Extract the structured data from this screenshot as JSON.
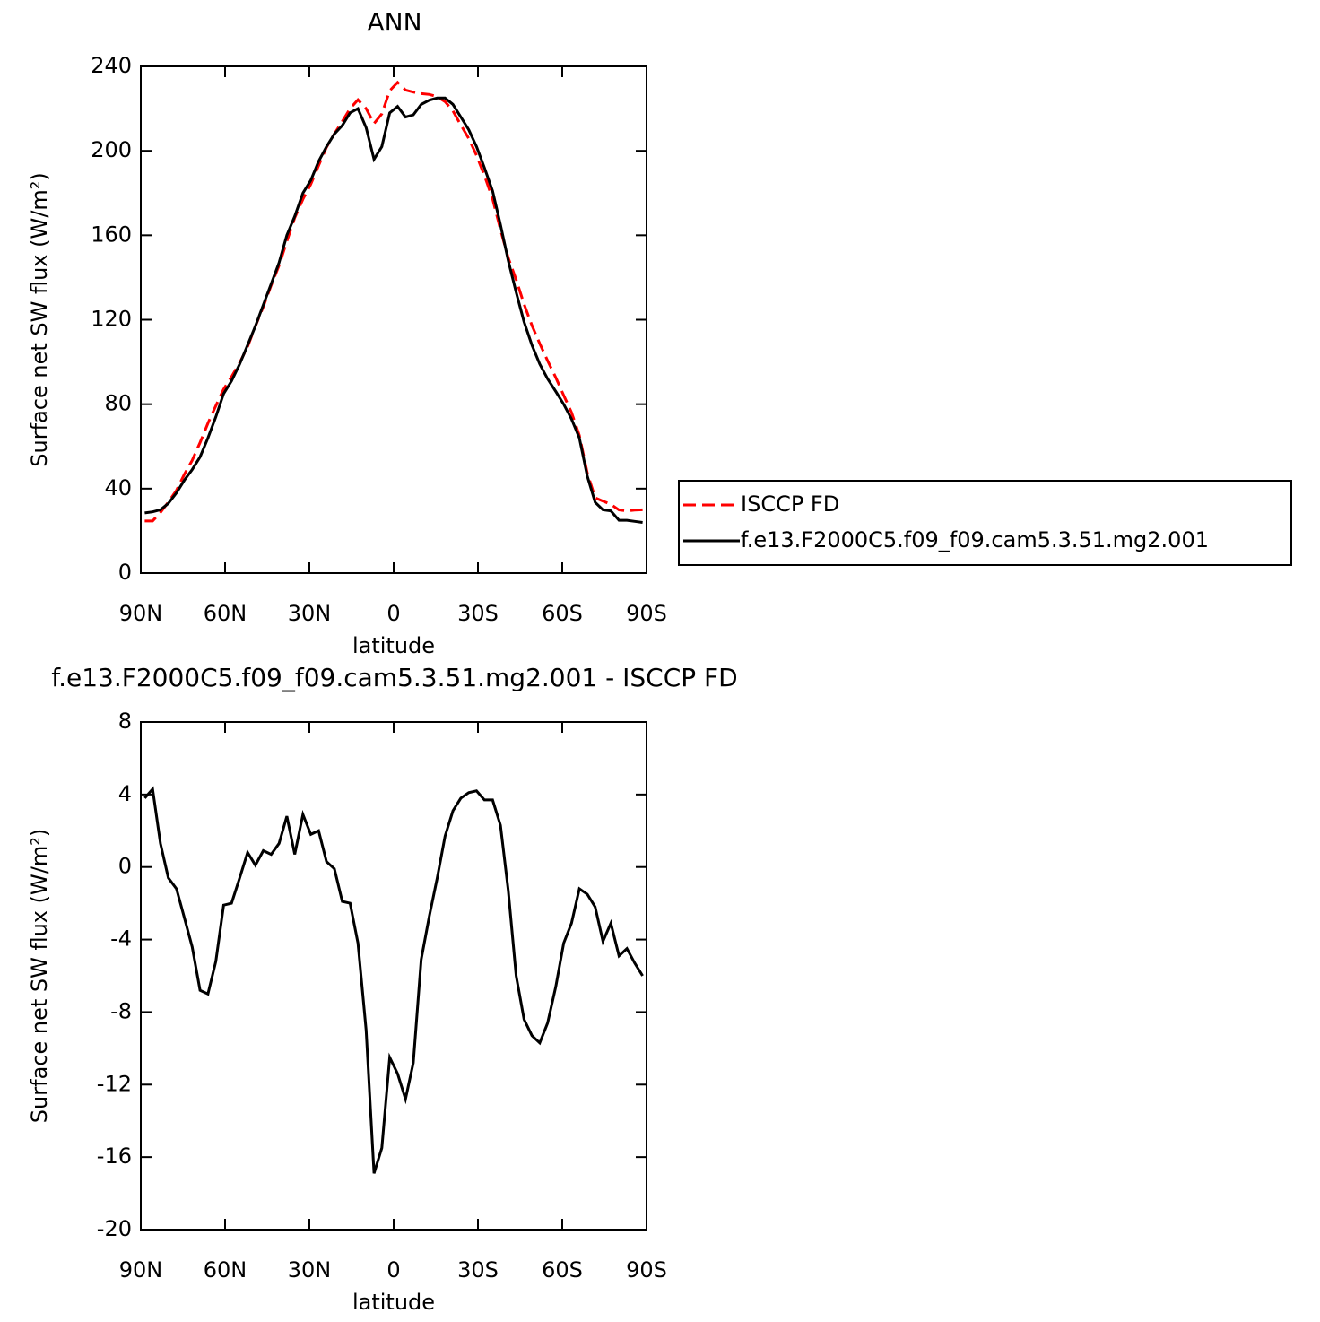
{
  "chart_data": [
    {
      "type": "line",
      "title": "ANN",
      "x_label": "latitude",
      "y_label": "Surface net SW flux (W/m²)",
      "x": [
        88.6,
        85.8,
        83.0,
        80.2,
        77.3,
        74.5,
        71.7,
        68.9,
        66.1,
        63.3,
        60.5,
        57.7,
        54.8,
        52.0,
        49.2,
        46.4,
        43.6,
        40.8,
        38.0,
        35.2,
        32.3,
        29.5,
        26.7,
        23.9,
        21.1,
        18.3,
        15.5,
        12.7,
        9.8,
        7.0,
        4.2,
        1.4,
        -1.4,
        -4.2,
        -7.0,
        -9.8,
        -12.7,
        -15.5,
        -18.3,
        -21.1,
        -23.9,
        -26.7,
        -29.5,
        -32.3,
        -35.2,
        -38.0,
        -40.8,
        -43.6,
        -46.4,
        -49.2,
        -52.0,
        -54.8,
        -57.7,
        -60.5,
        -63.3,
        -66.1,
        -68.9,
        -71.7,
        -74.5,
        -77.3,
        -80.2,
        -83.0,
        -85.8,
        -88.6
      ],
      "series": [
        {
          "name": "ISCCP FD",
          "color": "#ff0000",
          "line_style": "dashed",
          "values": [
            24.7,
            24.7,
            28.7,
            33.6,
            39.2,
            46.8,
            53.4,
            61.8,
            71.0,
            79.2,
            87.1,
            93.0,
            99.6,
            107.2,
            116.9,
            126.1,
            136.3,
            145.7,
            157.2,
            168.3,
            177.1,
            184.2,
            193.0,
            201.7,
            208.1,
            213.9,
            220.0,
            224.2,
            220.0,
            212.9,
            217.5,
            228.5,
            232.4,
            228.8,
            227.8,
            227.1,
            226.7,
            225.6,
            223.3,
            218.9,
            212.2,
            205.9,
            197.8,
            188.3,
            177.3,
            162.7,
            149.3,
            139.0,
            127.4,
            117.3,
            108.7,
            100.6,
            92.6,
            84.2,
            76.1,
            65.2,
            47.5,
            35.7,
            34.1,
            32.6,
            29.9,
            29.5,
            29.8,
            30.0
          ]
        },
        {
          "name": "f.e13.F2000C5.f09_f09.cam5.3.51.mg2.001",
          "color": "#000000",
          "line_style": "solid",
          "values": [
            28.5,
            29.0,
            30.0,
            33.0,
            38.0,
            44.0,
            49.0,
            55.0,
            64.0,
            74.0,
            85.0,
            91.0,
            99.0,
            108.0,
            117.0,
            127.0,
            137.0,
            147.0,
            160.0,
            169.0,
            180.0,
            186.0,
            195.0,
            202.0,
            208.0,
            212.0,
            218.0,
            220.0,
            211.0,
            196.0,
            202.0,
            218.0,
            221.0,
            216.0,
            217.0,
            222.0,
            224.0,
            225.0,
            225.0,
            222.0,
            216.0,
            210.0,
            202.0,
            192.0,
            181.0,
            165.0,
            148.0,
            133.0,
            119.0,
            108.0,
            99.0,
            92.0,
            86.0,
            80.0,
            73.0,
            64.0,
            46.0,
            33.5,
            30.0,
            29.5,
            25.0,
            25.0,
            24.5,
            24.0
          ]
        }
      ],
      "xlim": [
        90,
        -90
      ],
      "xticks": [
        {
          "value": 90,
          "label": "90N"
        },
        {
          "value": 60,
          "label": "60N"
        },
        {
          "value": 30,
          "label": "30N"
        },
        0,
        {
          "value": -30,
          "label": "30S"
        },
        {
          "value": -60,
          "label": "60S"
        },
        {
          "value": -90,
          "label": "90S"
        }
      ],
      "ylim": [
        0,
        240
      ],
      "yticks": [
        0,
        40,
        80,
        120,
        160,
        200,
        240
      ],
      "legend": "right"
    },
    {
      "type": "line",
      "title": "f.e13.F2000C5.f09_f09.cam5.3.51.mg2.001 - ISCCP FD",
      "x_label": "latitude",
      "y_label": "Surface net SW flux (W/m²)",
      "x": [
        88.6,
        85.8,
        83.0,
        80.2,
        77.3,
        74.5,
        71.7,
        68.9,
        66.1,
        63.3,
        60.5,
        57.7,
        54.8,
        52.0,
        49.2,
        46.4,
        43.6,
        40.8,
        38.0,
        35.2,
        32.3,
        29.5,
        26.7,
        23.9,
        21.1,
        18.3,
        15.5,
        12.7,
        9.8,
        7.0,
        4.2,
        1.4,
        -1.4,
        -4.2,
        -7.0,
        -9.8,
        -12.7,
        -15.5,
        -18.3,
        -21.1,
        -23.9,
        -26.7,
        -29.5,
        -32.3,
        -35.2,
        -38.0,
        -40.8,
        -43.6,
        -46.4,
        -49.2,
        -52.0,
        -54.8,
        -57.7,
        -60.5,
        -63.3,
        -66.1,
        -68.9,
        -71.7,
        -74.5,
        -77.3,
        -80.2,
        -83.0,
        -85.8,
        -88.6
      ],
      "values": [
        3.8,
        4.3,
        1.3,
        -0.6,
        -1.2,
        -2.8,
        -4.4,
        -6.8,
        -7.0,
        -5.2,
        -2.1,
        -2.0,
        -0.6,
        0.8,
        0.1,
        0.9,
        0.7,
        1.3,
        2.8,
        0.7,
        2.9,
        1.8,
        2.0,
        0.3,
        -0.1,
        -1.9,
        -2.0,
        -4.2,
        -9.0,
        -16.9,
        -15.5,
        -10.5,
        -11.4,
        -12.8,
        -10.8,
        -5.1,
        -2.7,
        -0.6,
        1.7,
        3.1,
        3.8,
        4.1,
        4.2,
        3.7,
        3.7,
        2.3,
        -1.3,
        -6.0,
        -8.4,
        -9.3,
        -9.7,
        -8.6,
        -6.6,
        -4.2,
        -3.1,
        -1.2,
        -1.5,
        -2.2,
        -4.1,
        -3.1,
        -4.9,
        -4.5,
        -5.3,
        -6.0
      ],
      "color": "#000000",
      "line_style": "solid",
      "xlim": [
        90,
        -90
      ],
      "xticks": [
        {
          "value": 90,
          "label": "90N"
        },
        {
          "value": 60,
          "label": "60N"
        },
        {
          "value": 30,
          "label": "30N"
        },
        0,
        {
          "value": -30,
          "label": "30S"
        },
        {
          "value": -60,
          "label": "60S"
        },
        {
          "value": -90,
          "label": "90S"
        }
      ],
      "ylim": [
        -20,
        8
      ],
      "yticks": [
        -20,
        -16,
        -12,
        -8,
        -4,
        0,
        4,
        8
      ]
    }
  ]
}
